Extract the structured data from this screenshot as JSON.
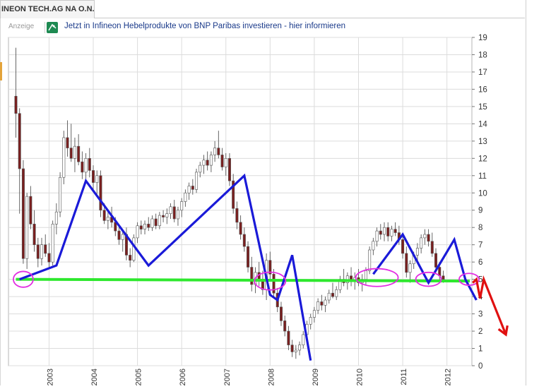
{
  "header": {
    "tab_title": "INEON TECH.AG NA O.N."
  },
  "ad": {
    "label": "Anzeige",
    "text": "Jetzt in Infineon Hebelprodukte von BNP Paribas investieren - hier informieren",
    "icon": "bnp-logo-icon",
    "color": "#1a3a8a"
  },
  "colors": {
    "up_candle": "#ffffff",
    "down_candle": "#7a1f1f",
    "support_line": "#2ee82e",
    "trend_line": "#1a1ad8",
    "forecast_arrow": "#e01010",
    "highlight_ellipse": "#e22ee2"
  },
  "chart_data": {
    "type": "candlestick",
    "title": "",
    "xlabel": "",
    "ylabel": "",
    "ylim": [
      0,
      19
    ],
    "y_ticks": [
      "0",
      "1",
      "2",
      "3",
      "4",
      "5",
      "6",
      "7",
      "8",
      "9",
      "10",
      "11",
      "12",
      "13",
      "14",
      "15",
      "16",
      "17",
      "18",
      "19"
    ],
    "x_ticks": [
      "2003",
      "2004",
      "2005",
      "2006",
      "2007",
      "2008",
      "2009",
      "2010",
      "2011",
      "2012"
    ],
    "grid": true,
    "start": "2002-04",
    "candles": [
      [
        15.6,
        18.4,
        13.2,
        14.6
      ],
      [
        14.6,
        14.9,
        8.8,
        11.4
      ],
      [
        11.4,
        11.9,
        5.9,
        6.2
      ],
      [
        6.2,
        10.0,
        5.6,
        9.8
      ],
      [
        9.8,
        10.4,
        7.9,
        8.2
      ],
      [
        8.2,
        9.0,
        6.6,
        7.0
      ],
      [
        7.0,
        7.4,
        5.7,
        6.2
      ],
      [
        6.2,
        7.4,
        5.8,
        7.0
      ],
      [
        7.0,
        7.6,
        6.3,
        6.5
      ],
      [
        6.5,
        7.1,
        5.6,
        6.0
      ],
      [
        6.0,
        8.4,
        5.8,
        8.2
      ],
      [
        8.2,
        9.4,
        7.6,
        8.9
      ],
      [
        8.9,
        11.2,
        8.6,
        10.9
      ],
      [
        10.9,
        13.6,
        10.5,
        13.2
      ],
      [
        13.2,
        14.2,
        12.1,
        12.6
      ],
      [
        12.6,
        14.0,
        11.8,
        12.0
      ],
      [
        12.0,
        13.2,
        11.2,
        12.7
      ],
      [
        12.7,
        13.4,
        11.6,
        11.8
      ],
      [
        11.8,
        12.4,
        10.8,
        11.2
      ],
      [
        11.2,
        12.3,
        10.8,
        12.0
      ],
      [
        12.0,
        12.6,
        10.9,
        11.3
      ],
      [
        11.3,
        11.6,
        10.2,
        10.6
      ],
      [
        10.6,
        11.3,
        9.9,
        11.0
      ],
      [
        11.0,
        11.3,
        8.6,
        9.0
      ],
      [
        9.0,
        9.4,
        8.2,
        8.4
      ],
      [
        8.4,
        9.0,
        7.9,
        8.6
      ],
      [
        8.6,
        9.2,
        8.0,
        8.3
      ],
      [
        8.3,
        8.6,
        7.5,
        7.8
      ],
      [
        7.8,
        8.1,
        7.0,
        7.3
      ],
      [
        7.3,
        7.9,
        6.6,
        7.6
      ],
      [
        7.6,
        8.0,
        6.1,
        6.4
      ],
      [
        6.4,
        6.8,
        5.7,
        6.1
      ],
      [
        6.1,
        7.6,
        6.0,
        7.4
      ],
      [
        7.4,
        8.3,
        7.1,
        8.1
      ],
      [
        8.1,
        8.4,
        7.6,
        7.9
      ],
      [
        7.9,
        8.4,
        7.6,
        8.2
      ],
      [
        8.2,
        8.6,
        7.8,
        8.0
      ],
      [
        8.0,
        8.7,
        7.8,
        8.5
      ],
      [
        8.5,
        8.8,
        7.9,
        8.1
      ],
      [
        8.1,
        8.9,
        7.9,
        8.7
      ],
      [
        8.7,
        9.0,
        8.3,
        8.6
      ],
      [
        8.6,
        9.1,
        8.2,
        8.8
      ],
      [
        8.8,
        9.4,
        8.5,
        9.2
      ],
      [
        9.2,
        9.6,
        8.3,
        8.5
      ],
      [
        8.5,
        9.2,
        8.1,
        9.0
      ],
      [
        9.0,
        9.7,
        8.6,
        9.5
      ],
      [
        9.5,
        10.2,
        9.2,
        10.0
      ],
      [
        10.0,
        10.6,
        9.6,
        10.4
      ],
      [
        10.4,
        10.8,
        9.9,
        10.2
      ],
      [
        10.2,
        11.4,
        10.0,
        11.2
      ],
      [
        11.2,
        11.8,
        10.9,
        11.6
      ],
      [
        11.6,
        12.2,
        11.1,
        11.9
      ],
      [
        11.9,
        12.4,
        11.3,
        11.6
      ],
      [
        11.6,
        12.4,
        11.2,
        12.2
      ],
      [
        12.2,
        13.0,
        11.8,
        12.6
      ],
      [
        12.6,
        13.6,
        12.0,
        12.2
      ],
      [
        12.2,
        12.6,
        11.3,
        11.5
      ],
      [
        11.5,
        12.3,
        11.0,
        12.0
      ],
      [
        12.0,
        12.3,
        10.4,
        10.7
      ],
      [
        10.7,
        11.1,
        8.8,
        9.1
      ],
      [
        9.1,
        9.5,
        7.9,
        8.3
      ],
      [
        8.3,
        8.7,
        7.3,
        7.6
      ],
      [
        7.6,
        8.0,
        6.6,
        6.9
      ],
      [
        6.9,
        7.2,
        5.4,
        5.7
      ],
      [
        5.7,
        6.3,
        4.3,
        4.7
      ],
      [
        4.7,
        5.7,
        4.2,
        5.4
      ],
      [
        5.4,
        6.0,
        4.6,
        4.9
      ],
      [
        4.9,
        5.5,
        4.1,
        4.4
      ],
      [
        4.4,
        6.5,
        3.8,
        6.1
      ],
      [
        6.1,
        6.6,
        5.0,
        5.3
      ],
      [
        5.3,
        5.6,
        3.9,
        4.2
      ],
      [
        4.2,
        4.5,
        3.1,
        3.4
      ],
      [
        3.4,
        3.7,
        2.3,
        2.6
      ],
      [
        2.6,
        2.9,
        1.7,
        2.0
      ],
      [
        2.0,
        2.3,
        0.9,
        1.2
      ],
      [
        1.2,
        1.5,
        0.5,
        0.8
      ],
      [
        0.8,
        1.2,
        0.4,
        0.9
      ],
      [
        0.9,
        1.4,
        0.6,
        1.2
      ],
      [
        1.2,
        2.0,
        1.0,
        1.8
      ],
      [
        1.8,
        2.6,
        1.6,
        2.4
      ],
      [
        2.4,
        3.0,
        2.1,
        2.8
      ],
      [
        2.8,
        3.4,
        2.5,
        3.2
      ],
      [
        3.2,
        3.9,
        3.0,
        3.7
      ],
      [
        3.7,
        4.1,
        3.2,
        3.5
      ],
      [
        3.5,
        4.0,
        3.1,
        3.8
      ],
      [
        3.8,
        4.4,
        3.6,
        4.2
      ],
      [
        4.2,
        4.8,
        3.9,
        4.0
      ],
      [
        4.0,
        4.6,
        3.8,
        4.4
      ],
      [
        4.4,
        5.2,
        4.2,
        5.0
      ],
      [
        5.0,
        5.6,
        4.6,
        4.8
      ],
      [
        4.8,
        5.4,
        4.4,
        5.2
      ],
      [
        5.2,
        5.7,
        4.6,
        4.9
      ],
      [
        4.9,
        5.4,
        4.4,
        5.1
      ],
      [
        5.1,
        5.6,
        4.6,
        4.8
      ],
      [
        4.8,
        5.3,
        4.3,
        5.0
      ],
      [
        5.0,
        5.7,
        4.7,
        5.5
      ],
      [
        5.5,
        6.9,
        5.3,
        6.7
      ],
      [
        6.7,
        7.4,
        6.4,
        7.2
      ],
      [
        7.2,
        8.0,
        6.9,
        7.8
      ],
      [
        7.8,
        8.2,
        7.3,
        7.6
      ],
      [
        7.6,
        8.3,
        7.2,
        8.0
      ],
      [
        8.0,
        8.3,
        7.2,
        7.5
      ],
      [
        7.5,
        8.1,
        7.2,
        7.9
      ],
      [
        7.9,
        8.3,
        7.5,
        7.7
      ],
      [
        7.7,
        8.1,
        7.0,
        7.3
      ],
      [
        7.3,
        7.6,
        6.2,
        6.5
      ],
      [
        6.5,
        6.9,
        5.1,
        5.4
      ],
      [
        5.4,
        6.1,
        4.8,
        5.9
      ],
      [
        5.9,
        6.6,
        5.6,
        6.4
      ],
      [
        6.4,
        7.1,
        6.0,
        6.8
      ],
      [
        6.8,
        7.6,
        6.5,
        7.4
      ],
      [
        7.4,
        7.9,
        7.0,
        7.6
      ],
      [
        7.6,
        7.9,
        6.9,
        7.2
      ],
      [
        7.2,
        7.7,
        6.3,
        6.5
      ],
      [
        6.5,
        6.8,
        5.4,
        5.7
      ],
      [
        5.7,
        6.0,
        4.9,
        5.2
      ],
      [
        5.2,
        5.5,
        4.8,
        5.0
      ]
    ]
  },
  "annotations": {
    "support_line": {
      "y_start": 5.0,
      "y_end": 4.9
    },
    "trend_polyline": [
      [
        "2002-05",
        5.0
      ],
      [
        "2003-03",
        5.8
      ],
      [
        "2003-11",
        10.7
      ],
      [
        "2005-04",
        5.8
      ],
      [
        "2007-06",
        11.0
      ],
      [
        "2008-01",
        4.1
      ],
      [
        "2008-03",
        3.8
      ],
      [
        "2008-07",
        6.4
      ],
      [
        "2008-12",
        0.3
      ]
    ],
    "trend_polyline_2": [
      [
        "2010-05",
        5.3
      ],
      [
        "2011-01",
        7.6
      ],
      [
        "2011-08",
        4.8
      ],
      [
        "2012-03",
        7.3
      ],
      [
        "2012-06",
        5.0
      ],
      [
        "2012-09",
        3.8
      ]
    ],
    "forecast_arrow": [
      [
        "2012-08",
        4.8
      ],
      [
        "2012-09",
        5.0
      ],
      [
        "2012-10",
        3.9
      ],
      [
        "2012-11",
        5.0
      ],
      [
        "2013-05",
        1.8
      ]
    ],
    "ellipses": [
      [
        "2002-06",
        5.0,
        1,
        0.8
      ],
      [
        "2008-01",
        4.9,
        2,
        0.9
      ],
      [
        "2010-06",
        5.1,
        3,
        0.9
      ],
      [
        "2011-08",
        5.0,
        1.5,
        0.7
      ],
      [
        "2012-07",
        5.0,
        1,
        0.6
      ]
    ]
  }
}
